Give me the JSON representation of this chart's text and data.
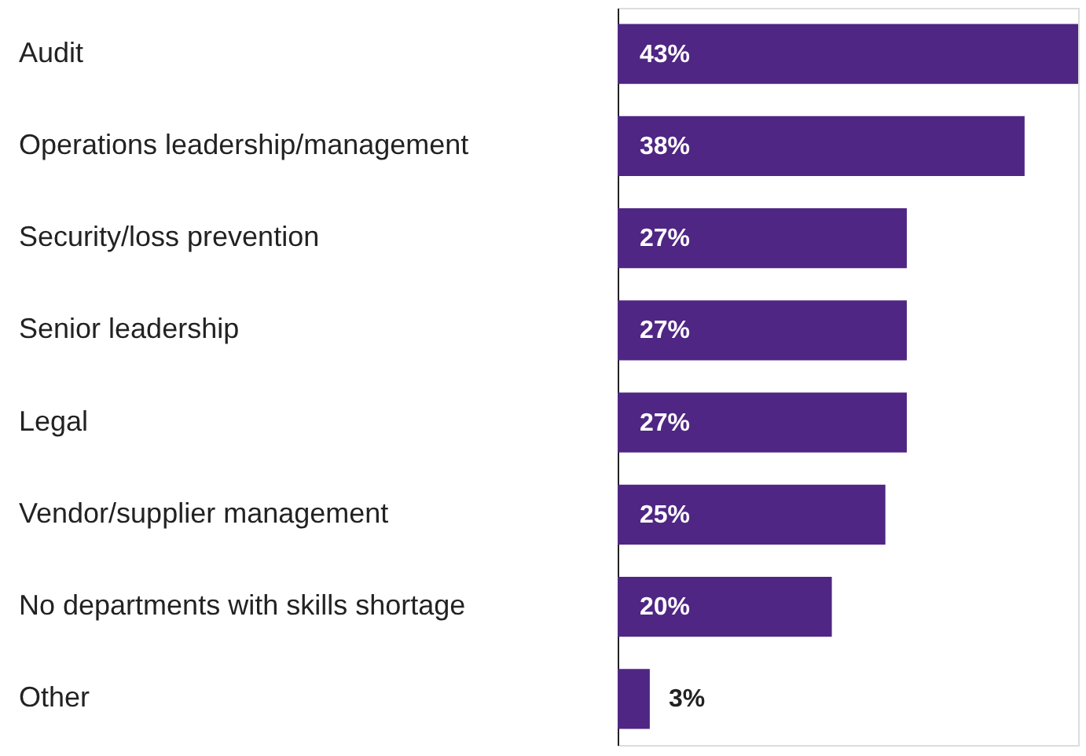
{
  "chart_data": {
    "type": "bar",
    "orientation": "horizontal",
    "categories": [
      "Audit",
      "Operations leadership/management",
      "Security/loss prevention",
      "Senior leadership",
      "Legal",
      "Vendor/supplier management",
      "No departments with skills shortage",
      "Other"
    ],
    "values": [
      43,
      38,
      27,
      27,
      27,
      25,
      20,
      3
    ],
    "value_labels": [
      "43%",
      "38%",
      "27%",
      "27%",
      "27%",
      "25%",
      "20%",
      "3%"
    ],
    "color": "#4f2683",
    "grid": false
  }
}
